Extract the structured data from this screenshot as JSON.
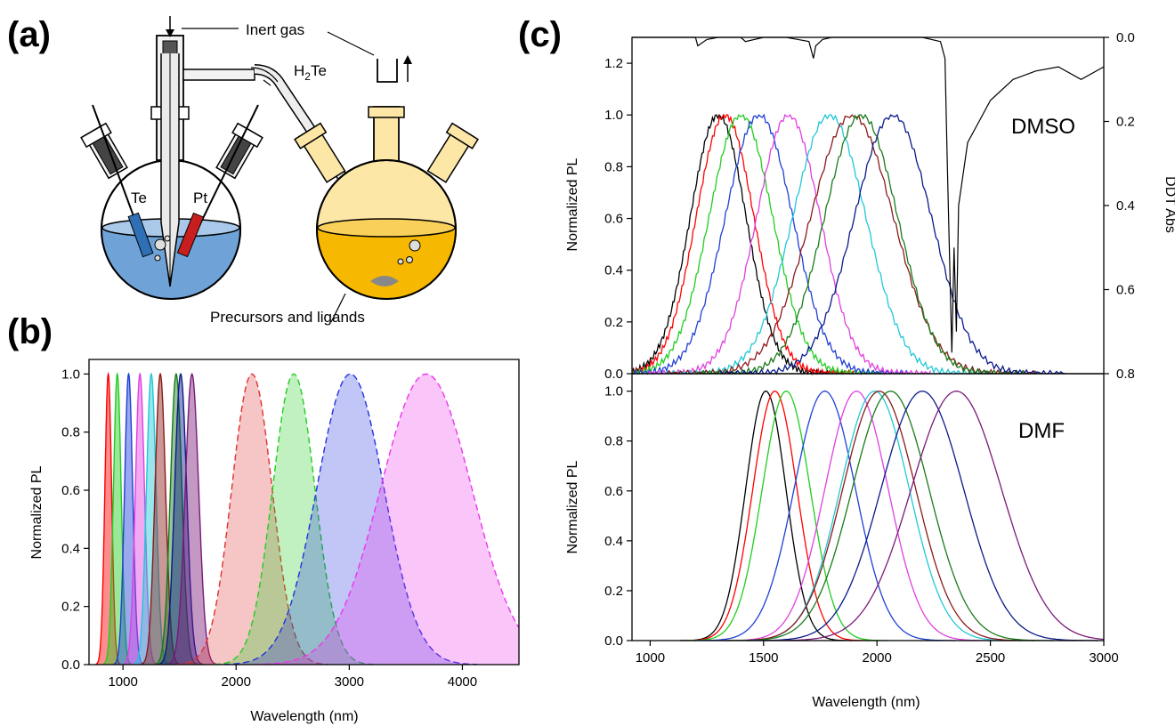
{
  "panel_labels": {
    "a": "(a)",
    "b": "(b)",
    "c": "(c)"
  },
  "apparatus": {
    "inert_gas": "Inert gas",
    "h2te_base": "H",
    "h2te_sub": "2",
    "h2te_tail": "Te",
    "te_electrode": "Te",
    "pt_electrode": "Pt",
    "precursors": "Precursors and ligands",
    "colors": {
      "solution_blue": "#6fa3d8",
      "solution_orange": "#f6b800",
      "glass_yellow": "#fde7a6",
      "te_electrode": "#2f6fb5",
      "pt_electrode": "#c81e1e"
    }
  },
  "chart_data": [
    {
      "id": "b",
      "type": "area",
      "xlabel": "Wavelength (nm)",
      "ylabel": "Normalized PL",
      "xlim": [
        700,
        4500
      ],
      "ylim": [
        0,
        1.05
      ],
      "xticks": [
        1000,
        2000,
        3000,
        4000
      ],
      "yticks": [
        0.0,
        0.2,
        0.4,
        0.6,
        0.8,
        1.0
      ],
      "grid": false,
      "legend": "none",
      "series": [
        {
          "peak": 870,
          "fwhm": 70,
          "color": "#ff0000",
          "style": "solid"
        },
        {
          "peak": 950,
          "fwhm": 80,
          "color": "#22cc22",
          "style": "solid"
        },
        {
          "peak": 1050,
          "fwhm": 85,
          "color": "#1f3fd6",
          "style": "solid"
        },
        {
          "peak": 1150,
          "fwhm": 95,
          "color": "#e040e0",
          "style": "solid"
        },
        {
          "peak": 1250,
          "fwhm": 100,
          "color": "#20c8d8",
          "style": "solid"
        },
        {
          "peak": 1330,
          "fwhm": 110,
          "color": "#8b1a1a",
          "style": "solid"
        },
        {
          "peak": 1470,
          "fwhm": 120,
          "color": "#1a7a1a",
          "style": "solid"
        },
        {
          "peak": 1510,
          "fwhm": 125,
          "color": "#0a1a8a",
          "style": "solid"
        },
        {
          "peak": 1610,
          "fwhm": 140,
          "color": "#7a1a7a",
          "style": "solid"
        },
        {
          "peak": 2140,
          "fwhm": 420,
          "color": "#e03030",
          "style": "dashed"
        },
        {
          "peak": 2510,
          "fwhm": 440,
          "color": "#22cc22",
          "style": "dashed"
        },
        {
          "peak": 3010,
          "fwhm": 700,
          "color": "#2233dd",
          "style": "dashed"
        },
        {
          "peak": 3680,
          "fwhm": 950,
          "color": "#ee33ee",
          "style": "dashed"
        }
      ]
    },
    {
      "id": "c-top",
      "type": "line",
      "label": "DMSO",
      "ylabel": "Normalized PL",
      "y2label": "DDT Abs",
      "xlim": [
        920,
        3000
      ],
      "ylim": [
        0,
        1.3
      ],
      "y2lim": [
        0.0,
        0.8
      ],
      "yticks": [
        0.0,
        0.2,
        0.4,
        0.6,
        0.8,
        1.0,
        1.2
      ],
      "y2ticks": [
        0.0,
        0.2,
        0.4,
        0.6,
        0.8
      ],
      "grid": false,
      "legend": "none",
      "series": [
        {
          "peak": 1300,
          "fwhm": 290,
          "color": "#000000"
        },
        {
          "peak": 1330,
          "fwhm": 300,
          "color": "#ff0000"
        },
        {
          "peak": 1400,
          "fwhm": 330,
          "color": "#22cc22"
        },
        {
          "peak": 1480,
          "fwhm": 350,
          "color": "#1f3fd6"
        },
        {
          "peak": 1610,
          "fwhm": 330,
          "color": "#e040e0"
        },
        {
          "peak": 1790,
          "fwhm": 380,
          "color": "#20c8d8"
        },
        {
          "peak": 1890,
          "fwhm": 430,
          "color": "#8b1a1a"
        },
        {
          "peak": 1930,
          "fwhm": 380,
          "color": "#1a7a1a"
        },
        {
          "peak": 2070,
          "fwhm": 400,
          "color": "#0a1a8a"
        }
      ],
      "absorbance": {
        "color": "#000000",
        "x": [
          920,
          1000,
          1100,
          1150,
          1200,
          1210,
          1250,
          1300,
          1350,
          1400,
          1420,
          1500,
          1600,
          1700,
          1720,
          1730,
          1760,
          1800,
          1900,
          2000,
          2100,
          2200,
          2280,
          2300,
          2310,
          2330,
          2340,
          2350,
          2360,
          2400,
          2450,
          2500,
          2600,
          2700,
          2800,
          2900,
          3000
        ],
        "abs": [
          0.0,
          0.0,
          0.0,
          0.0,
          0.0,
          0.02,
          0.005,
          0.0,
          0.0,
          0.0,
          0.01,
          0.0,
          0.0,
          0.01,
          0.05,
          0.02,
          0.005,
          0.0,
          0.0,
          0.0,
          0.0,
          0.0,
          0.01,
          0.05,
          0.3,
          0.75,
          0.5,
          0.7,
          0.4,
          0.25,
          0.2,
          0.15,
          0.1,
          0.08,
          0.07,
          0.1,
          0.07
        ]
      }
    },
    {
      "id": "c-bottom",
      "type": "line",
      "label": "DMF",
      "xlabel": "Wavelength (nm)",
      "ylabel": "Normalized PL",
      "xlim": [
        920,
        3000
      ],
      "ylim": [
        0,
        1.07
      ],
      "xticks": [
        1000,
        1500,
        2000,
        2500,
        3000
      ],
      "yticks": [
        0.0,
        0.2,
        0.4,
        0.6,
        0.8,
        1.0
      ],
      "grid": false,
      "legend": "none",
      "series": [
        {
          "peak": 1510,
          "fwhm": 210,
          "color": "#000000"
        },
        {
          "peak": 1550,
          "fwhm": 230,
          "color": "#ff0000"
        },
        {
          "peak": 1600,
          "fwhm": 250,
          "color": "#22cc22"
        },
        {
          "peak": 1770,
          "fwhm": 320,
          "color": "#1f3fd6"
        },
        {
          "peak": 1910,
          "fwhm": 330,
          "color": "#e040e0"
        },
        {
          "peak": 1990,
          "fwhm": 360,
          "color": "#20c8d8"
        },
        {
          "peak": 2010,
          "fwhm": 380,
          "color": "#8b1a1a"
        },
        {
          "peak": 2060,
          "fwhm": 400,
          "color": "#1a7a1a"
        },
        {
          "peak": 2200,
          "fwhm": 430,
          "color": "#0a1a8a"
        },
        {
          "peak": 2350,
          "fwhm": 470,
          "color": "#7a1a7a"
        }
      ]
    }
  ]
}
